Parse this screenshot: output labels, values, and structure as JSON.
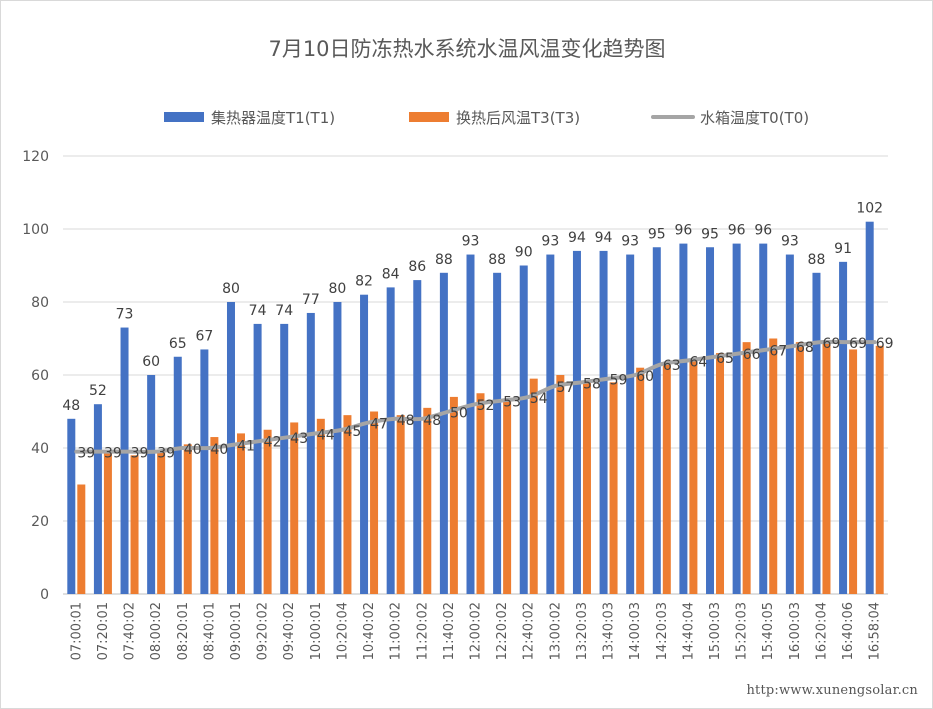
{
  "chart_data": {
    "type": "bar",
    "title": "7月10日防冻热水系统水温风温变化趋势图",
    "categories": [
      "07:00:01",
      "07:20:01",
      "07:40:02",
      "08:00:02",
      "08:20:01",
      "08:40:01",
      "09:00:01",
      "09:20:02",
      "09:40:02",
      "10:00:01",
      "10:20:04",
      "10:40:02",
      "11:00:02",
      "11:20:02",
      "11:40:02",
      "12:00:02",
      "12:20:02",
      "12:40:02",
      "13:00:02",
      "13:20:03",
      "13:40:03",
      "14:00:03",
      "14:20:03",
      "14:40:04",
      "15:00:03",
      "15:20:03",
      "15:40:05",
      "16:00:03",
      "16:20:04",
      "16:40:06",
      "16:58:04"
    ],
    "series": [
      {
        "name": "集热器温度T1(T1)",
        "kind": "bar",
        "color": "#4472C4",
        "values": [
          48,
          52,
          73,
          60,
          65,
          67,
          80,
          74,
          74,
          77,
          80,
          82,
          84,
          86,
          88,
          93,
          88,
          90,
          93,
          94,
          94,
          93,
          95,
          96,
          95,
          96,
          96,
          93,
          88,
          91,
          102
        ]
      },
      {
        "name": "换热后风温T3(T3)",
        "kind": "bar",
        "color": "#ED7D31",
        "values": [
          30,
          39,
          38,
          39,
          41,
          43,
          44,
          45,
          47,
          48,
          49,
          50,
          49,
          51,
          54,
          55,
          53,
          59,
          60,
          58,
          58,
          62,
          63,
          64,
          66,
          69,
          70,
          69,
          69,
          67,
          68
        ]
      },
      {
        "name": "水箱温度T0(T0)",
        "kind": "line",
        "color": "#A5A5A5",
        "values": [
          39,
          39,
          39,
          39,
          40,
          40,
          41,
          42,
          43,
          44,
          45,
          47,
          48,
          48,
          50,
          52,
          53,
          54,
          57,
          58,
          59,
          60,
          63,
          64,
          65,
          66,
          67,
          68,
          69,
          69,
          69
        ]
      }
    ],
    "value_labels": {
      "集热器温度T1(T1)": [
        "48",
        "52",
        "73",
        "60",
        "65",
        "67",
        "80",
        "74",
        "74",
        "77",
        "80",
        "82",
        "84",
        "86",
        "88",
        "93",
        "88",
        "90",
        "93",
        "94",
        "94",
        "93",
        "95",
        "96",
        "95",
        "96",
        "96",
        "93",
        "88",
        "91",
        "102"
      ],
      "水箱温度T0(T0)": [
        "39",
        "39",
        "39",
        "39",
        "40",
        "40",
        "41",
        "42",
        "43",
        "44",
        "45",
        "47",
        "48",
        "48",
        "50",
        "52",
        "53",
        "54",
        "57",
        "58",
        "59",
        "60",
        "63",
        "64",
        "65",
        "66",
        "67",
        "68",
        "69",
        "69",
        "69"
      ]
    },
    "xlabel": "",
    "ylabel": "",
    "ylim": [
      0,
      120
    ],
    "yticks": [
      "0",
      "20",
      "40",
      "60",
      "80",
      "100",
      "120"
    ],
    "grid": true,
    "legend_position": "top"
  },
  "watermark": "http:www.xunengsolar.cn"
}
